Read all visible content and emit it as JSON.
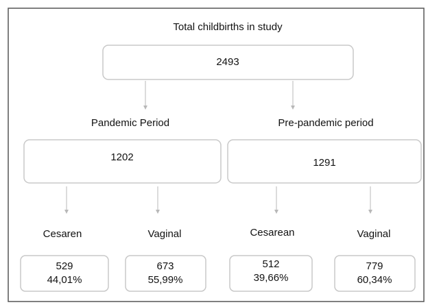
{
  "title": "Total childbirths in study",
  "total": "2493",
  "groups": [
    {
      "label": "Pandemic Period",
      "count": "1202",
      "children": [
        {
          "label": "Cesaren",
          "count": "529",
          "percent": "44,01%"
        },
        {
          "label": "Vaginal",
          "count": "673",
          "percent": "55,99%"
        }
      ]
    },
    {
      "label": "Pre-pandemic period",
      "count": "1291",
      "children": [
        {
          "label": "Cesarean",
          "count": "512",
          "percent": "39,66%"
        },
        {
          "label": "Vaginal",
          "count": "779",
          "percent": "60,34%"
        }
      ]
    }
  ]
}
